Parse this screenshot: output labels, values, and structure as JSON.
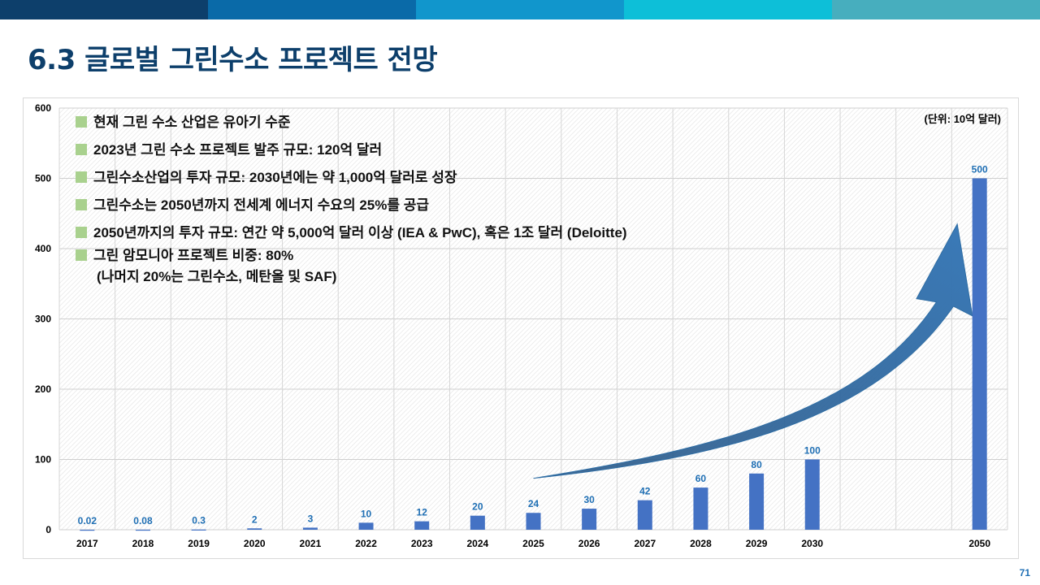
{
  "header": {
    "title": "6.3 글로벌 그린수소 프로젝트 전망",
    "bar_colors": [
      "#0d3f6b",
      "#0a6aa8",
      "#1196cc",
      "#0dbfd8",
      "#47aebe"
    ]
  },
  "page_number": "71",
  "chart_data": {
    "type": "bar",
    "title": "",
    "unit_label": "(단위: 10억 달러)",
    "categories": [
      "2017",
      "2018",
      "2019",
      "2020",
      "2021",
      "2022",
      "2023",
      "2024",
      "2025",
      "2026",
      "2027",
      "2028",
      "2029",
      "2030",
      "",
      "",
      "2050"
    ],
    "values": [
      0.02,
      0.08,
      0.3,
      2,
      3,
      10,
      12,
      20,
      24,
      30,
      42,
      60,
      80,
      100,
      null,
      null,
      500
    ],
    "data_labels": [
      "0.02",
      "0.08",
      "0.3",
      "2",
      "3",
      "10",
      "12",
      "20",
      "24",
      "30",
      "42",
      "60",
      "80",
      "100",
      "",
      "",
      "500"
    ],
    "ylim": [
      0,
      600
    ],
    "yticks": [
      0,
      100,
      200,
      300,
      400,
      500,
      600
    ],
    "grid": true,
    "bar_color": "#4472c4",
    "label_color": "#1f6fb4",
    "annotations": [
      "현재 그린 수소 산업은 유아기 수준",
      "2023년 그린 수소 프로젝트 발주 규모: 120억 달러",
      "그린수소산업의 투자 규모: 2030년에는 약 1,000억 달러로 성장",
      "그린수소는 2050년까지 전세계 에너지 수요의 25%를 공급",
      "2050년까지의 투자 규모: 연간 약 5,000억 달러 이상 (IEA & PwC), 혹은 1조 달러 (Deloitte)",
      "그린 암모니아 프로젝트 비중: 80%"
    ],
    "annotation_continuation": "(나머지 20%는 그린수소, 메탄올 및 SAF)",
    "bullet_color": "#a9d18e",
    "trend_arrow_color": "#2e6da4"
  }
}
